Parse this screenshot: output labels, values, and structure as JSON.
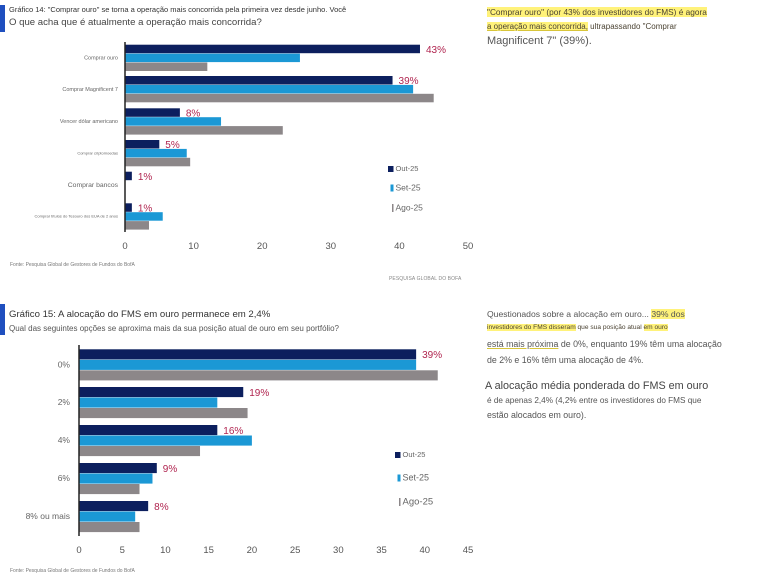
{
  "chart_data": [
    {
      "type": "bar",
      "orientation": "horizontal",
      "title": "Gráfico 14: \"Comprar ouro\" se torna a operação mais concorrida pela primeira vez desde junho. Você",
      "subtitle": "O que acha que é atualmente a operação mais concorrida?",
      "categories": [
        "Comprar ouro",
        "Comprar Magnificent 7",
        "Vencer dólar americano",
        "Comprar criptomoedas",
        "Comprar bancos",
        "Comprar títulos do Tesouro dos EUA de 2 anos"
      ],
      "series": [
        {
          "name": "Out-25",
          "color": "#0c1f5e",
          "values": [
            43,
            39,
            8,
            5,
            1,
            1
          ]
        },
        {
          "name": "Set-25",
          "color": "#1b98d5",
          "values": [
            25.5,
            42,
            14,
            9,
            0,
            5.5
          ]
        },
        {
          "name": "Ago-25",
          "color": "#8c8789",
          "values": [
            12,
            45,
            23,
            9.5,
            0,
            3.5
          ]
        }
      ],
      "data_labels": {
        "series": "Out-25",
        "labels": [
          "43%",
          "39%",
          "8%",
          "5%",
          "1%",
          "1%"
        ]
      },
      "xlim": [
        0,
        50
      ],
      "xticks": [
        0,
        10,
        20,
        30,
        40,
        50
      ],
      "xlabel": "",
      "ylabel": "",
      "grid": false,
      "legend": {
        "position": "right",
        "entries": [
          "Out-25",
          "Set-25",
          "Ago-25"
        ]
      },
      "source": "Fonte: Pesquisa Global de Gestores de Fundos do BofA",
      "brand": "PESQUISA GLOBAL DO BOFA"
    },
    {
      "type": "bar",
      "orientation": "horizontal",
      "title": "Gráfico 15: A alocação do FMS em ouro permanece em 2,4%",
      "subtitle": "Qual das seguintes opções se aproxima mais da sua posição atual de ouro em seu portfólio?",
      "categories": [
        "0%",
        "2%",
        "4%",
        "6%",
        "8% ou mais"
      ],
      "series": [
        {
          "name": "Out-25",
          "color": "#0c1f5e",
          "values": [
            39,
            19,
            16,
            9,
            8
          ]
        },
        {
          "name": "Set-25",
          "color": "#1b98d5",
          "values": [
            39,
            16,
            20,
            8.5,
            6.5
          ]
        },
        {
          "name": "Ago-25",
          "color": "#8c8789",
          "values": [
            41.5,
            19.5,
            14,
            7,
            7
          ]
        }
      ],
      "data_labels": {
        "series": "Out-25",
        "labels": [
          "39%",
          "19%",
          "16%",
          "9%",
          "8%"
        ]
      },
      "xlim": [
        0,
        45
      ],
      "xticks": [
        0,
        5,
        10,
        15,
        20,
        25,
        30,
        35,
        40,
        45
      ],
      "xlabel": "",
      "ylabel": "",
      "grid": false,
      "legend": {
        "position": "right",
        "entries": [
          "Out-25",
          "Set-25",
          "Ago-25"
        ]
      },
      "source": "Fonte: Pesquisa Global de Gestores de Fundos do BofA"
    }
  ],
  "commentary": {
    "p1": {
      "line1": "\"Comprar ouro\" (por 43% dos investidores do FMS) é agora",
      "line2_highlight": "a operação mais concorrida,",
      "line2_rest": " ultrapassando \"Comprar",
      "line3": "Magnificent 7\" (39%)."
    },
    "p2": {
      "line1_start": "Questionados sobre a alocação em ouro... ",
      "line1_highlight": "39% dos",
      "line2_highlight_a": "investidores do FMS disseram",
      "line2_mid": " que sua posição atual ",
      "line2_highlight_b": "em ouro",
      "line3_underline": "está mais próxima",
      "line3_rest": " de 0%, enquanto 19% têm uma alocação",
      "line4": "de 2% e 16% têm uma alocação de 4%."
    },
    "p3": {
      "line1": "A alocação média ponderada do FMS em ouro",
      "line2": "é de apenas 2,4% (4,2% entre os investidores do FMS que",
      "line3": "estão alocados em ouro)."
    }
  },
  "colors": {
    "accent": "#1f4fbf",
    "highlight": "#fff27a",
    "data_label": "#b0244f",
    "axis": "#222222"
  }
}
